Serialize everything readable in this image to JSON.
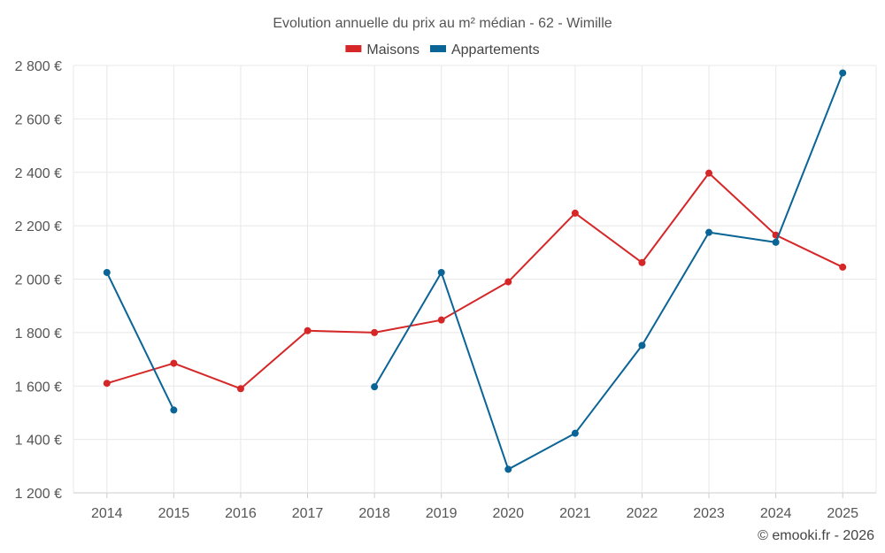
{
  "chart_data": {
    "type": "line",
    "title": "Evolution annuelle du prix au m² médian - 62 - Wimille",
    "categories": [
      "2014",
      "2015",
      "2016",
      "2017",
      "2018",
      "2019",
      "2020",
      "2021",
      "2022",
      "2023",
      "2024",
      "2025"
    ],
    "series": [
      {
        "name": "Maisons",
        "color": "#d62728",
        "values": [
          1610,
          1685,
          1590,
          1807,
          1800,
          1847,
          1990,
          2247,
          2062,
          2397,
          2165,
          2045
        ]
      },
      {
        "name": "Appartements",
        "color": "#0a6496",
        "values": [
          2025,
          1510,
          null,
          null,
          1597,
          2025,
          1288,
          1423,
          1752,
          2175,
          2138,
          2772
        ]
      }
    ],
    "ylim": [
      1200,
      2800
    ],
    "yticks": [
      1200,
      1400,
      1600,
      1800,
      2000,
      2200,
      2400,
      2600,
      2800
    ],
    "ytick_labels": [
      "1 200 €",
      "1 400 €",
      "1 600 €",
      "1 800 €",
      "2 000 €",
      "2 200 €",
      "2 400 €",
      "2 600 €",
      "2 800 €"
    ],
    "xlabel": "",
    "ylabel": "",
    "grid": true,
    "legend_position": "top-center"
  },
  "credit": "© emooki.fr - 2026"
}
